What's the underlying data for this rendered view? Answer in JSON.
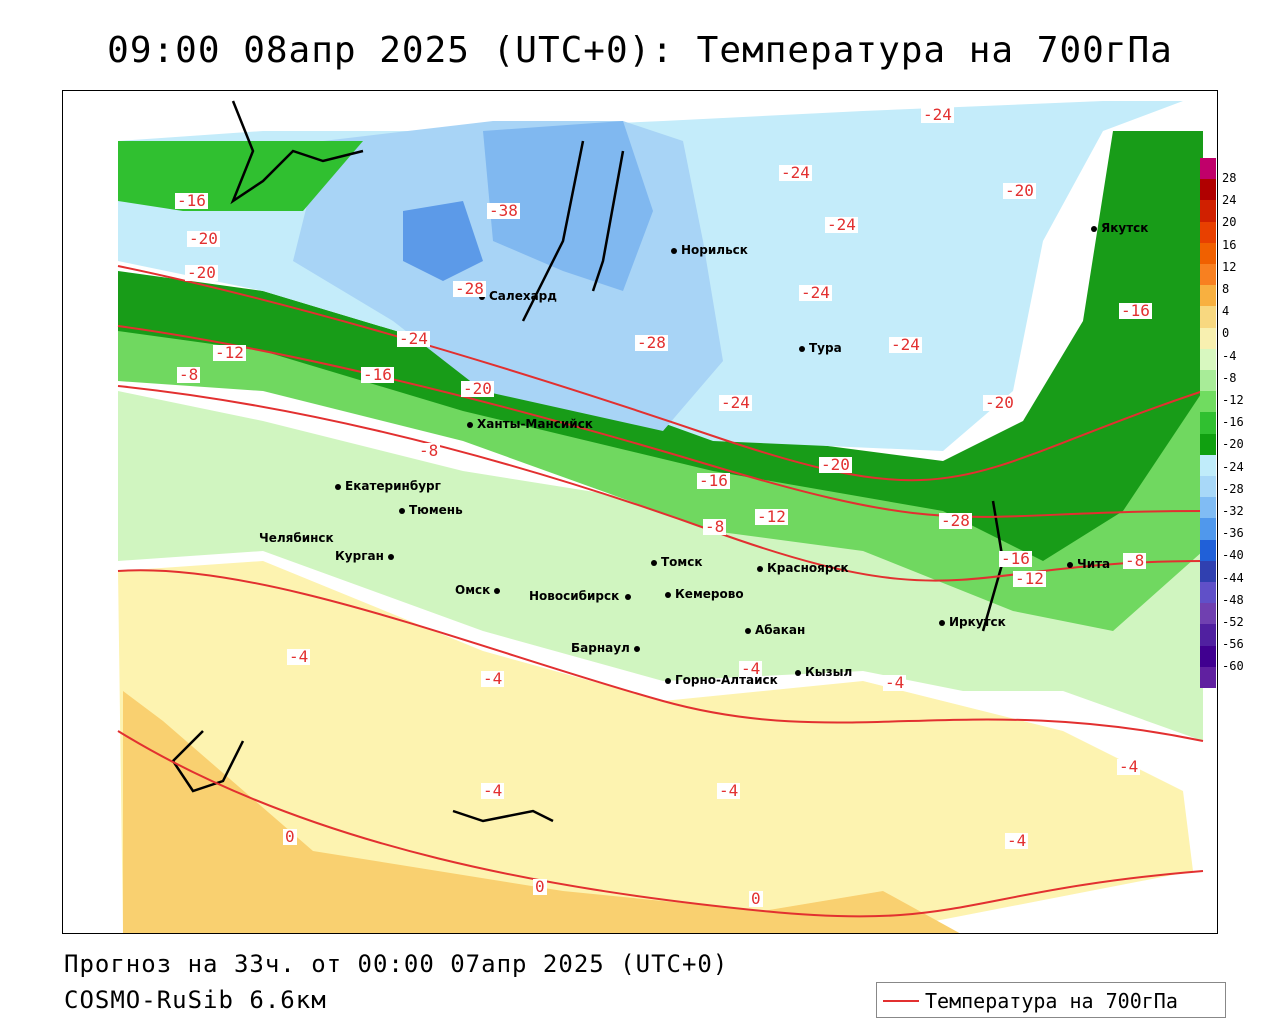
{
  "title": "09:00 08апр 2025 (UTC+0): Температура на 700гПа",
  "footer": {
    "forecast": "Прогноз на 33ч. от 00:00 07апр 2025 (UTC+0)",
    "model": "COSMO-RuSib 6.6км"
  },
  "legend": {
    "label": "Температура на 700гПа",
    "color": "#e23030"
  },
  "colorbar": {
    "ticks": [
      "28",
      "24",
      "20",
      "16",
      "12",
      "8",
      "4",
      "0",
      "-4",
      "-8",
      "-12",
      "-16",
      "-20",
      "-24",
      "-28",
      "-32",
      "-36",
      "-40",
      "-44",
      "-48",
      "-52",
      "-56",
      "-60"
    ],
    "colors": [
      "#c0006a",
      "#b00000",
      "#d02000",
      "#e84000",
      "#f06000",
      "#f88020",
      "#f8b040",
      "#f8d880",
      "#f8f0b0",
      "#d8f8c0",
      "#a8ec98",
      "#70dc60",
      "#30c030",
      "#10a010",
      "#c0ecfa",
      "#a8d8f8",
      "#80bcf4",
      "#5098ec",
      "#2060d8",
      "#3040b0",
      "#6050c8",
      "#7040b0",
      "#5020a0",
      "#400090",
      "#6020a0"
    ]
  },
  "cities": [
    {
      "name": "Якутск"
    },
    {
      "name": "Норильск"
    },
    {
      "name": "Салехард"
    },
    {
      "name": "Тура"
    },
    {
      "name": "Ханты-Мансийск"
    },
    {
      "name": "Екатеринбург"
    },
    {
      "name": "Тюмень"
    },
    {
      "name": "Челябинск"
    },
    {
      "name": "Курган"
    },
    {
      "name": "Омск"
    },
    {
      "name": "Томск"
    },
    {
      "name": "Новосибирск"
    },
    {
      "name": "Кемерово"
    },
    {
      "name": "Красноярск"
    },
    {
      "name": "Барнаул"
    },
    {
      "name": "Абакан"
    },
    {
      "name": "Горно-Алтайск"
    },
    {
      "name": "Кызыл"
    },
    {
      "name": "Иркутск"
    },
    {
      "name": "Чита"
    }
  ],
  "contour_labels": [
    "-24",
    "-16",
    "-20",
    "-20",
    "-38",
    "-24",
    "-24",
    "-20",
    "-28",
    "-24",
    "-16",
    "-12",
    "-28",
    "-24",
    "-8",
    "-16",
    "-24",
    "-20",
    "-20",
    "-24",
    "-8",
    "-20",
    "-16",
    "-8",
    "-12",
    "-28",
    "-16",
    "-12",
    "-8",
    "-4",
    "-4",
    "-4",
    "-4",
    "-4",
    "-4",
    "-4",
    "-4",
    "0",
    "0",
    "0"
  ]
}
